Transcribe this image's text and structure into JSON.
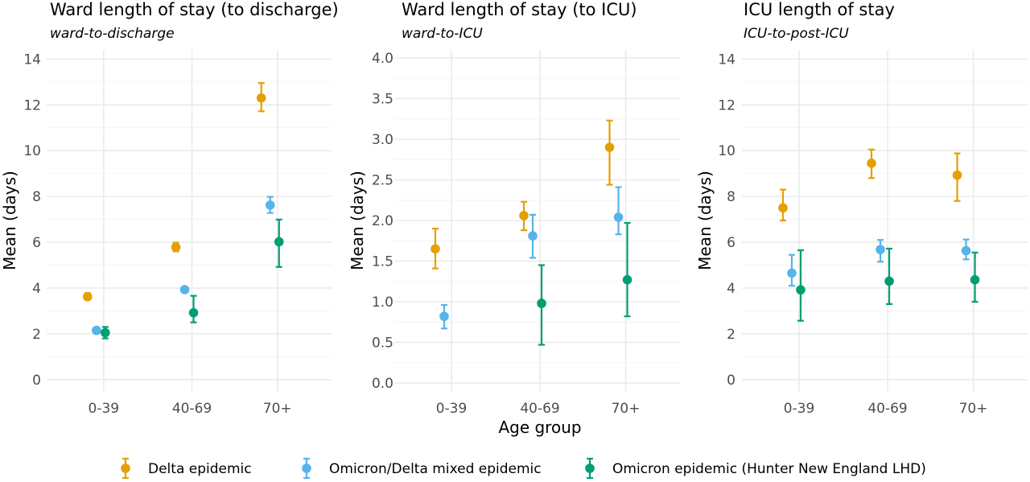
{
  "chart_data": [
    {
      "type": "scatter",
      "title": "Ward length of stay (to discharge)",
      "subtitle": "ward-to-discharge",
      "ylabel": "Mean (days)",
      "ylim": [
        -0.5,
        14.4
      ],
      "yticks": [
        0,
        2,
        4,
        6,
        8,
        10,
        12,
        14
      ],
      "ytick_labels": [
        "0",
        "2",
        "4",
        "6",
        "8",
        "10",
        "12",
        "14"
      ],
      "categories": [
        "0-39",
        "40-69",
        "70+"
      ],
      "series": [
        {
          "name": "Delta epidemic",
          "points": [
            {
              "x": "0-39",
              "mean": 3.62,
              "lower": 3.5,
              "upper": 3.78
            },
            {
              "x": "40-69",
              "mean": 5.78,
              "lower": 5.6,
              "upper": 5.98
            },
            {
              "x": "70+",
              "mean": 12.3,
              "lower": 11.72,
              "upper": 12.95
            }
          ]
        },
        {
          "name": "Omicron/Delta mixed epidemic",
          "points": [
            {
              "x": "0-39",
              "mean": 2.15,
              "lower": 2.07,
              "upper": 2.24
            },
            {
              "x": "40-69",
              "mean": 3.93,
              "lower": 3.83,
              "upper": 4.03
            },
            {
              "x": "70+",
              "mean": 7.62,
              "lower": 7.28,
              "upper": 7.98
            }
          ]
        },
        {
          "name": "Omicron epidemic (Hunter New England LHD)",
          "points": [
            {
              "x": "0-39",
              "mean": 2.05,
              "lower": 1.8,
              "upper": 2.3
            },
            {
              "x": "40-69",
              "mean": 2.92,
              "lower": 2.5,
              "upper": 3.66
            },
            {
              "x": "70+",
              "mean": 6.02,
              "lower": 4.92,
              "upper": 6.99
            }
          ]
        }
      ]
    },
    {
      "type": "scatter",
      "title": "Ward length of stay (to ICU)",
      "subtitle": "ward-to-ICU",
      "ylabel": "Mean (days)",
      "ylim": [
        -0.1,
        4.1
      ],
      "yticks": [
        0,
        0.5,
        1,
        1.5,
        2,
        2.5,
        3,
        3.5,
        4
      ],
      "ytick_labels": [
        "0.0",
        "0.5",
        "1.0",
        "1.5",
        "2.0",
        "2.5",
        "3.0",
        "3.5",
        "4.0"
      ],
      "categories": [
        "0-39",
        "40-69",
        "70+"
      ],
      "series": [
        {
          "name": "Delta epidemic",
          "points": [
            {
              "x": "0-39",
              "mean": 1.65,
              "lower": 1.41,
              "upper": 1.9
            },
            {
              "x": "40-69",
              "mean": 2.06,
              "lower": 1.88,
              "upper": 2.23
            },
            {
              "x": "70+",
              "mean": 2.9,
              "lower": 2.44,
              "upper": 3.23
            }
          ]
        },
        {
          "name": "Omicron/Delta mixed epidemic",
          "points": [
            {
              "x": "0-39",
              "mean": 0.82,
              "lower": 0.67,
              "upper": 0.96
            },
            {
              "x": "40-69",
              "mean": 1.81,
              "lower": 1.54,
              "upper": 2.07
            },
            {
              "x": "70+",
              "mean": 2.04,
              "lower": 1.83,
              "upper": 2.41
            }
          ]
        },
        {
          "name": "Omicron epidemic (Hunter New England LHD)",
          "points": [
            {
              "x": "40-69",
              "mean": 0.98,
              "lower": 0.47,
              "upper": 1.45
            },
            {
              "x": "70+",
              "mean": 1.27,
              "lower": 0.82,
              "upper": 1.97
            }
          ]
        }
      ]
    },
    {
      "type": "scatter",
      "title": "ICU length of stay",
      "subtitle": "ICU-to-post-ICU",
      "ylabel": "Mean (days)",
      "ylim": [
        -0.5,
        14.4
      ],
      "yticks": [
        0,
        2,
        4,
        6,
        8,
        10,
        12,
        14
      ],
      "ytick_labels": [
        "0",
        "2",
        "4",
        "6",
        "8",
        "10",
        "12",
        "14"
      ],
      "categories": [
        "0-39",
        "40-69",
        "70+"
      ],
      "series": [
        {
          "name": "Delta epidemic",
          "points": [
            {
              "x": "0-39",
              "mean": 7.5,
              "lower": 6.95,
              "upper": 8.3
            },
            {
              "x": "40-69",
              "mean": 9.45,
              "lower": 8.8,
              "upper": 10.05
            },
            {
              "x": "70+",
              "mean": 8.93,
              "lower": 7.8,
              "upper": 9.88
            }
          ]
        },
        {
          "name": "Omicron/Delta mixed epidemic",
          "points": [
            {
              "x": "0-39",
              "mean": 4.65,
              "lower": 4.1,
              "upper": 5.45
            },
            {
              "x": "40-69",
              "mean": 5.68,
              "lower": 5.15,
              "upper": 6.1
            },
            {
              "x": "70+",
              "mean": 5.63,
              "lower": 5.25,
              "upper": 6.12
            }
          ]
        },
        {
          "name": "Omicron epidemic (Hunter New England LHD)",
          "points": [
            {
              "x": "0-39",
              "mean": 3.92,
              "lower": 2.57,
              "upper": 5.65
            },
            {
              "x": "40-69",
              "mean": 4.3,
              "lower": 3.3,
              "upper": 5.72
            },
            {
              "x": "70+",
              "mean": 4.36,
              "lower": 3.4,
              "upper": 5.55
            }
          ]
        }
      ]
    }
  ],
  "xlabel": "Age group",
  "legend": {
    "placement": "bottom",
    "items": [
      {
        "label": "Delta epidemic",
        "color": "#E69F00"
      },
      {
        "label": "Omicron/Delta mixed epidemic",
        "color": "#56B4E9"
      },
      {
        "label": "Omicron epidemic (Hunter New England LHD)",
        "color": "#009E73"
      }
    ]
  },
  "colors": {
    "Delta epidemic": "#E69F00",
    "Omicron/Delta mixed epidemic": "#56B4E9",
    "Omicron epidemic (Hunter New England LHD)": "#009E73"
  },
  "grid": true
}
